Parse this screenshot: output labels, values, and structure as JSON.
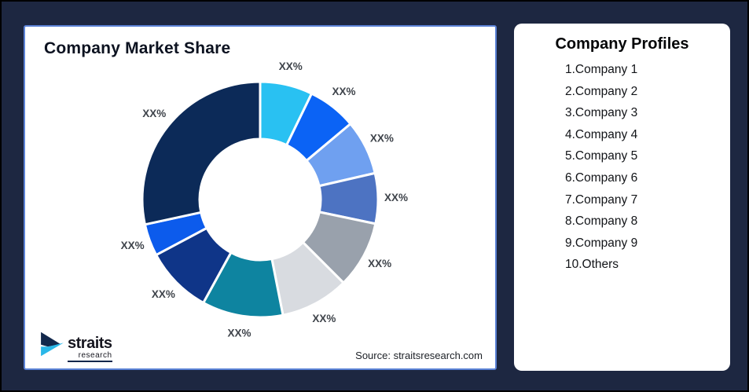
{
  "page": {
    "background_color": "#1d2741",
    "frame_color": "#000000"
  },
  "chart_card": {
    "title": "Company Market Share",
    "source_note": "Source: straitsresearch.com",
    "border_color": "#5b82d6",
    "logo": {
      "brand": "straits",
      "brand_sub": "research",
      "icon": "straits-double-arrow-icon",
      "navy": "#12284c",
      "cyan": "#29b7e8"
    }
  },
  "chart_data": {
    "type": "pie",
    "variant": "donut",
    "title": "Company Market Share",
    "value_labels_shown_as": "XX%",
    "start_angle_deg": 0,
    "inner_radius_ratio": 0.51,
    "legend_position": "none",
    "segments": [
      {
        "name": "Company 1",
        "display_label": "XX%",
        "est_percent": 7.2,
        "color": "#29c1f2"
      },
      {
        "name": "Company 2",
        "display_label": "XX%",
        "est_percent": 6.7,
        "color": "#0b63f5"
      },
      {
        "name": "Company 3",
        "display_label": "XX%",
        "est_percent": 7.5,
        "color": "#6fa0f0"
      },
      {
        "name": "Company 4",
        "display_label": "XX%",
        "est_percent": 6.9,
        "color": "#4d73c2"
      },
      {
        "name": "Company 5",
        "display_label": "XX%",
        "est_percent": 9.2,
        "color": "#99a1ac"
      },
      {
        "name": "Company 6",
        "display_label": "XX%",
        "est_percent": 9.4,
        "color": "#d8dbe0"
      },
      {
        "name": "Company 7",
        "display_label": "XX%",
        "est_percent": 11.1,
        "color": "#0e84a0"
      },
      {
        "name": "Company 8",
        "display_label": "XX%",
        "est_percent": 9.2,
        "color": "#0f3588"
      },
      {
        "name": "Company 9",
        "display_label": "XX%",
        "est_percent": 4.4,
        "color": "#0c5bec"
      },
      {
        "name": "Others",
        "display_label": "XX%",
        "est_percent": 28.4,
        "color": "#0c2a58"
      }
    ],
    "note": "Slice percentages estimated from arc angles; chart displays placeholder labels 'XX%' only"
  },
  "profiles_card": {
    "title": "Company Profiles",
    "items": [
      "1.Company 1",
      "2.Company 2",
      "3.Company 3",
      "4.Company 4",
      "5.Company 5",
      "6.Company 6",
      "7.Company 7",
      "8.Company 8",
      "9.Company 9",
      "10.Others"
    ]
  }
}
